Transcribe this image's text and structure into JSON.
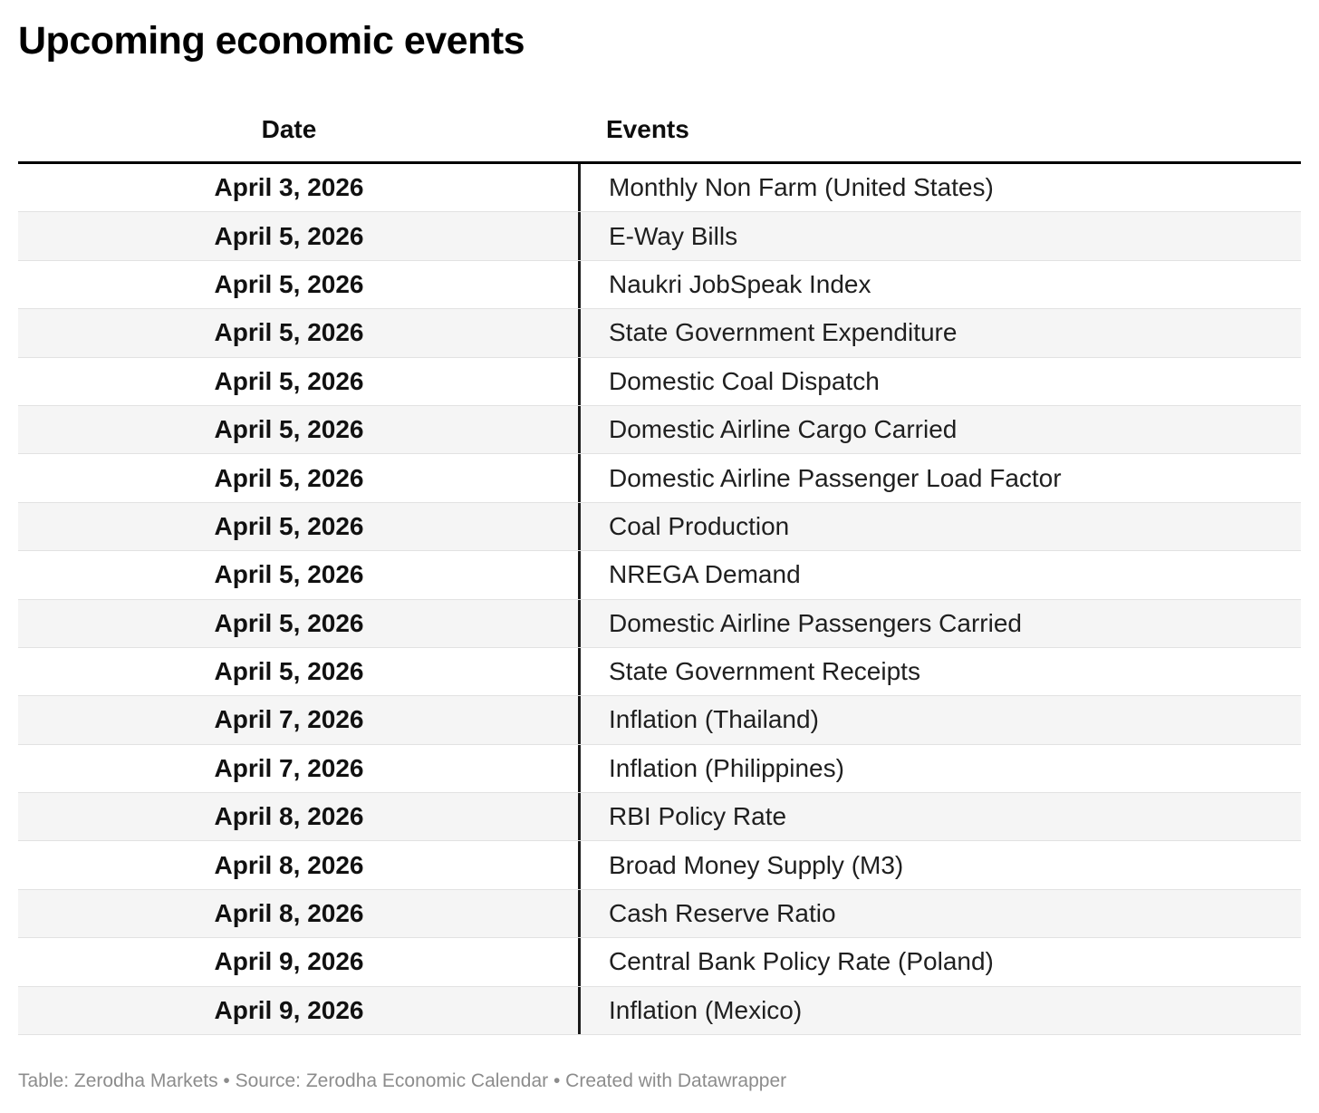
{
  "title": "Upcoming economic events",
  "chart_data": {
    "type": "table",
    "title": "Upcoming economic events",
    "columns": [
      "Date",
      "Events"
    ],
    "rows": [
      [
        "April 3, 2026",
        "Monthly Non Farm (United States)"
      ],
      [
        "April 5, 2026",
        "E-Way Bills"
      ],
      [
        "April 5, 2026",
        "Naukri JobSpeak Index"
      ],
      [
        "April 5, 2026",
        "State Government Expenditure"
      ],
      [
        "April 5, 2026",
        "Domestic Coal Dispatch"
      ],
      [
        "April 5, 2026",
        "Domestic Airline Cargo Carried"
      ],
      [
        "April 5, 2026",
        "Domestic Airline Passenger Load Factor"
      ],
      [
        "April 5, 2026",
        "Coal Production"
      ],
      [
        "April 5, 2026",
        "NREGA Demand"
      ],
      [
        "April 5, 2026",
        "Domestic Airline Passengers Carried"
      ],
      [
        "April 5, 2026",
        "State Government Receipts"
      ],
      [
        "April 7, 2026",
        "Inflation (Thailand)"
      ],
      [
        "April 7, 2026",
        "Inflation (Philippines)"
      ],
      [
        "April 8, 2026",
        "RBI Policy Rate"
      ],
      [
        "April 8, 2026",
        "Broad Money Supply (M3)"
      ],
      [
        "April 8, 2026",
        "Cash Reserve Ratio"
      ],
      [
        "April 9, 2026",
        "Central Bank Policy Rate (Poland)"
      ],
      [
        "April 9, 2026",
        "Inflation (Mexico)"
      ]
    ],
    "legend_position": "none",
    "grid": "row-separators"
  },
  "footer": {
    "text": "Table: Zerodha Markets • Source: Zerodha Economic Calendar • Created with Datawrapper"
  },
  "colors": {
    "stripe": "#f5f5f5",
    "row_separator": "#e2e2e2",
    "header_rule": "#000000",
    "column_divider": "#1a1a1a",
    "footer_text": "#8c8c8c",
    "title_text": "#000000"
  }
}
